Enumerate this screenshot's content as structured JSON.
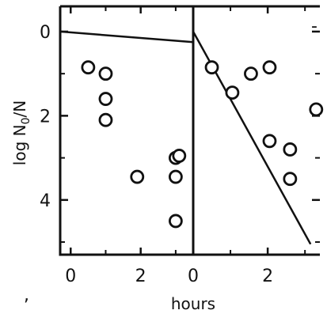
{
  "chart_data": {
    "type": "scatter",
    "title": "",
    "ylabel": "log N",
    "ylabel_sub": "0",
    "ylabel_suffix": "/N",
    "xlabel": "hours",
    "ylim": [
      5.3,
      -0.6
    ],
    "y_ticks": [
      0,
      2,
      4
    ],
    "y_tick_labels": [
      "0",
      "2",
      "4"
    ],
    "grid": false,
    "panels": [
      {
        "name": "left",
        "xlim": [
          -0.3,
          3.5
        ],
        "x_ticks": [
          0,
          2,
          4
        ],
        "x_tick_labels": [
          "0",
          "2",
          ""
        ],
        "line": [
          [
            -0.3,
            0.0
          ],
          [
            3.5,
            0.25
          ]
        ],
        "points": [
          {
            "x": 0.5,
            "y": 0.85
          },
          {
            "x": 1.0,
            "y": 1.0
          },
          {
            "x": 1.0,
            "y": 1.6
          },
          {
            "x": 1.0,
            "y": 2.1
          },
          {
            "x": 1.9,
            "y": 3.45
          },
          {
            "x": 3.0,
            "y": 3.0
          },
          {
            "x": 3.1,
            "y": 2.95
          },
          {
            "x": 3.0,
            "y": 3.45
          },
          {
            "x": 3.0,
            "y": 4.5
          }
        ]
      },
      {
        "name": "right",
        "xlim": [
          0,
          3.4
        ],
        "x_ticks": [
          0,
          2
        ],
        "x_tick_labels": [
          "0",
          "2"
        ],
        "line": [
          [
            0.0,
            0.0
          ],
          [
            3.15,
            5.05
          ]
        ],
        "points": [
          {
            "x": 0.5,
            "y": 0.85
          },
          {
            "x": 1.05,
            "y": 1.45
          },
          {
            "x": 1.55,
            "y": 1.0
          },
          {
            "x": 2.05,
            "y": 0.85
          },
          {
            "x": 2.05,
            "y": 2.6
          },
          {
            "x": 2.6,
            "y": 2.8
          },
          {
            "x": 2.6,
            "y": 3.5
          },
          {
            "x": 3.3,
            "y": 1.85
          }
        ]
      }
    ],
    "stray_marks": [
      "-",
      ","
    ]
  }
}
